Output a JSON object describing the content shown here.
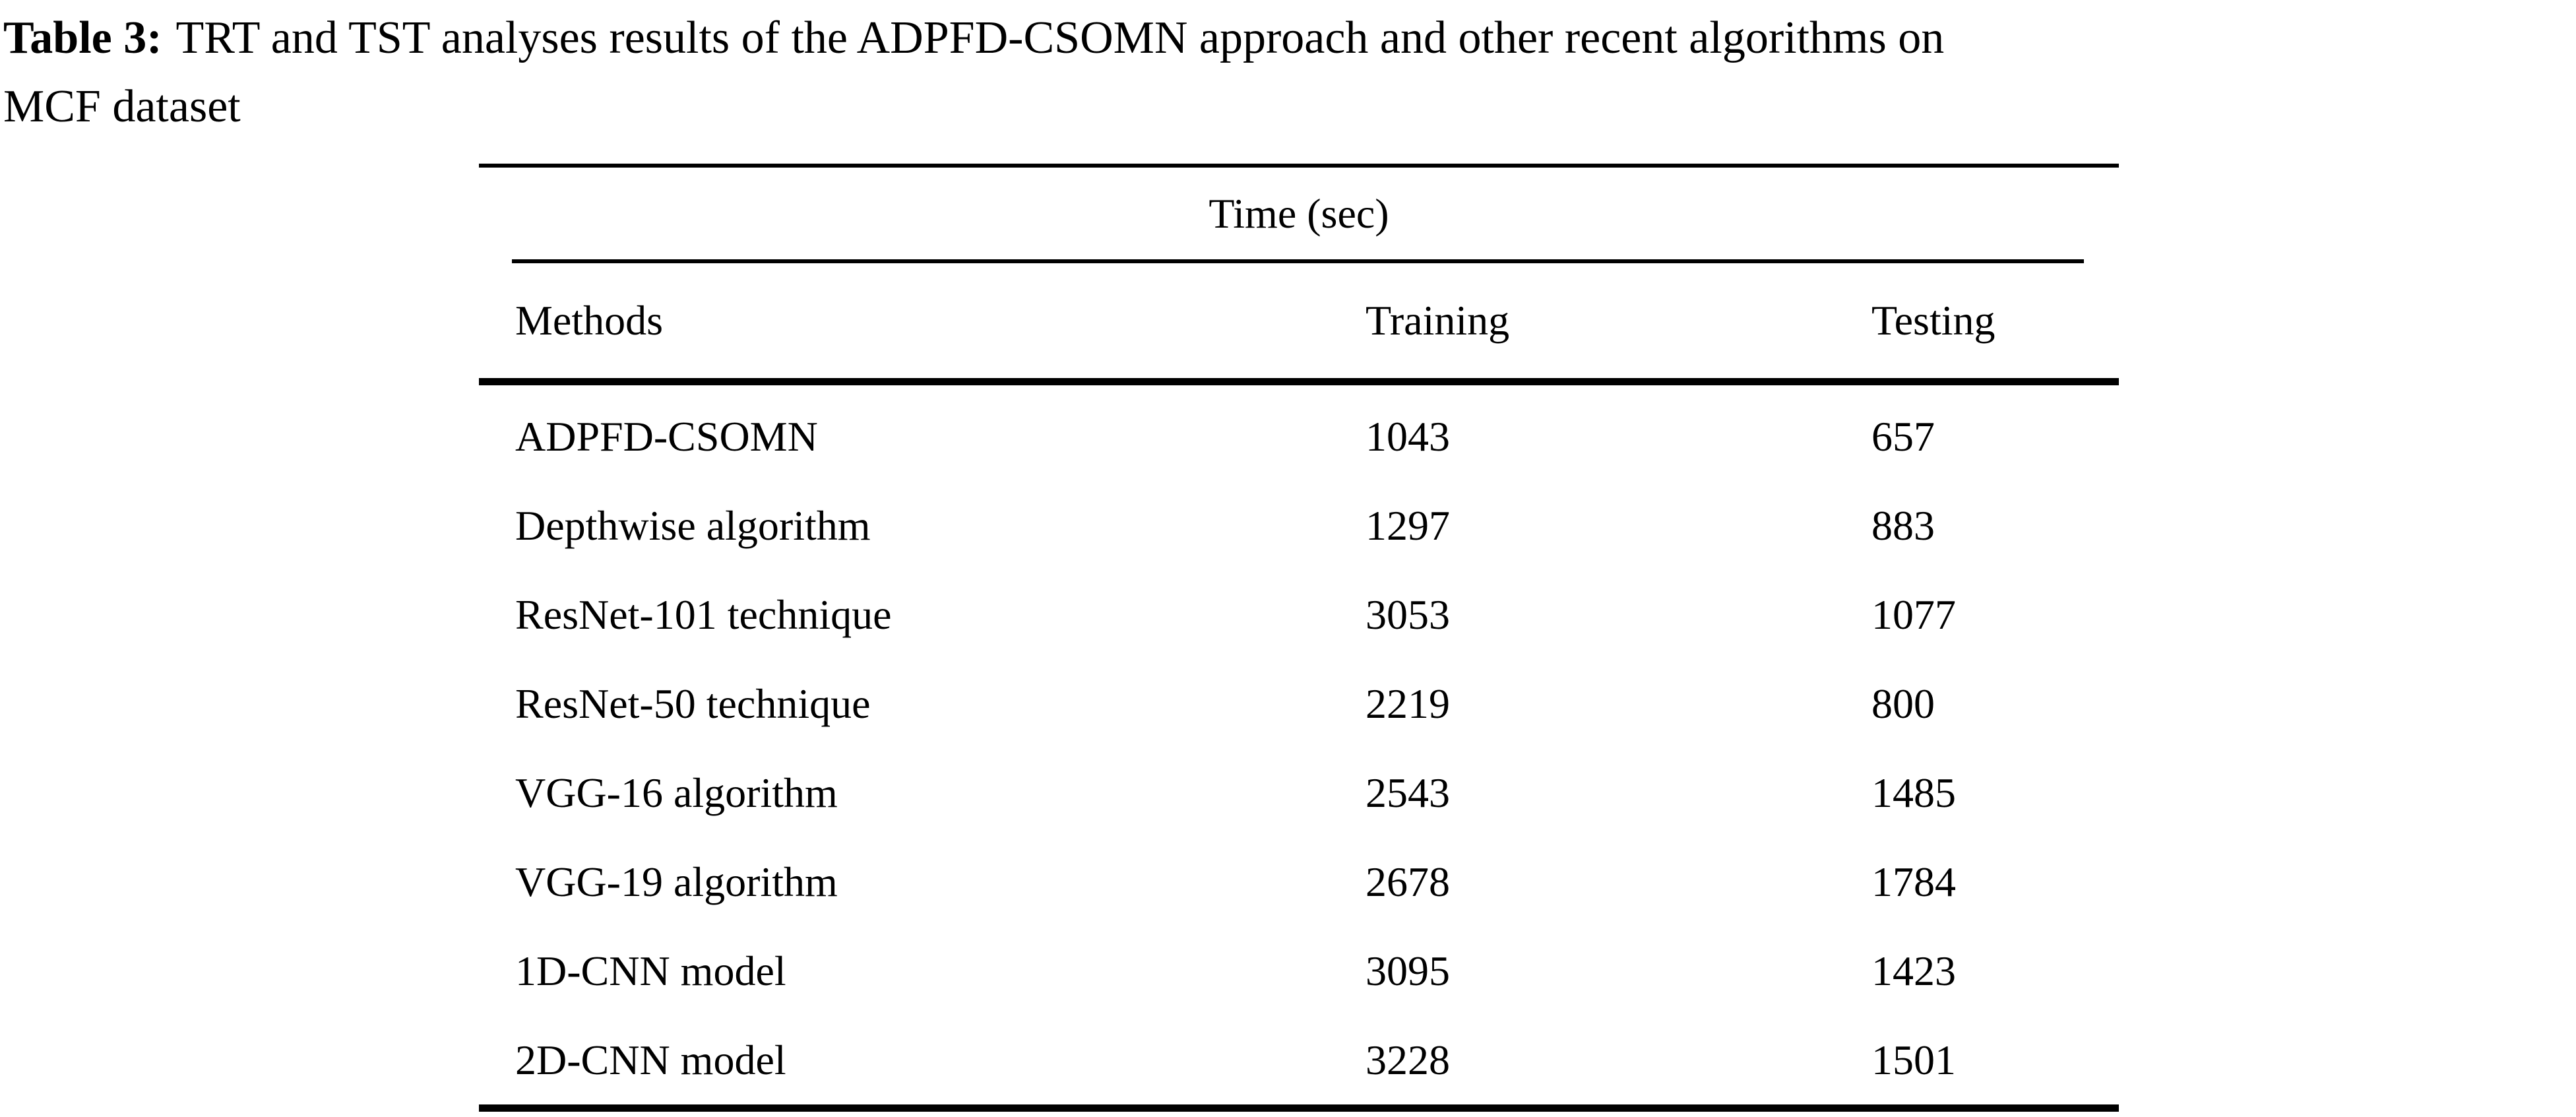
{
  "caption": {
    "label": "Table 3:",
    "line1": "TRT and TST analyses results of the ADPFD-CSOMN approach and other recent algorithms on",
    "line2": "MCF dataset"
  },
  "table": {
    "span_header": "Time (sec)",
    "columns": {
      "methods": "Methods",
      "training": "Training",
      "testing": "Testing"
    },
    "rows": [
      {
        "method": "ADPFD-CSOMN",
        "training": "1043",
        "testing": "657"
      },
      {
        "method": "Depthwise algorithm",
        "training": "1297",
        "testing": "883"
      },
      {
        "method": "ResNet-101 technique",
        "training": "3053",
        "testing": "1077"
      },
      {
        "method": "ResNet-50 technique",
        "training": "2219",
        "testing": "800"
      },
      {
        "method": "VGG-16 algorithm",
        "training": "2543",
        "testing": "1485"
      },
      {
        "method": "VGG-19 algorithm",
        "training": "2678",
        "testing": "1784"
      },
      {
        "method": "1D-CNN model",
        "training": "3095",
        "testing": "1423"
      },
      {
        "method": "2D-CNN model",
        "training": "3228",
        "testing": "1501"
      }
    ]
  },
  "colors": {
    "background": "#ffffff",
    "text": "#000000",
    "rule": "#000000"
  }
}
